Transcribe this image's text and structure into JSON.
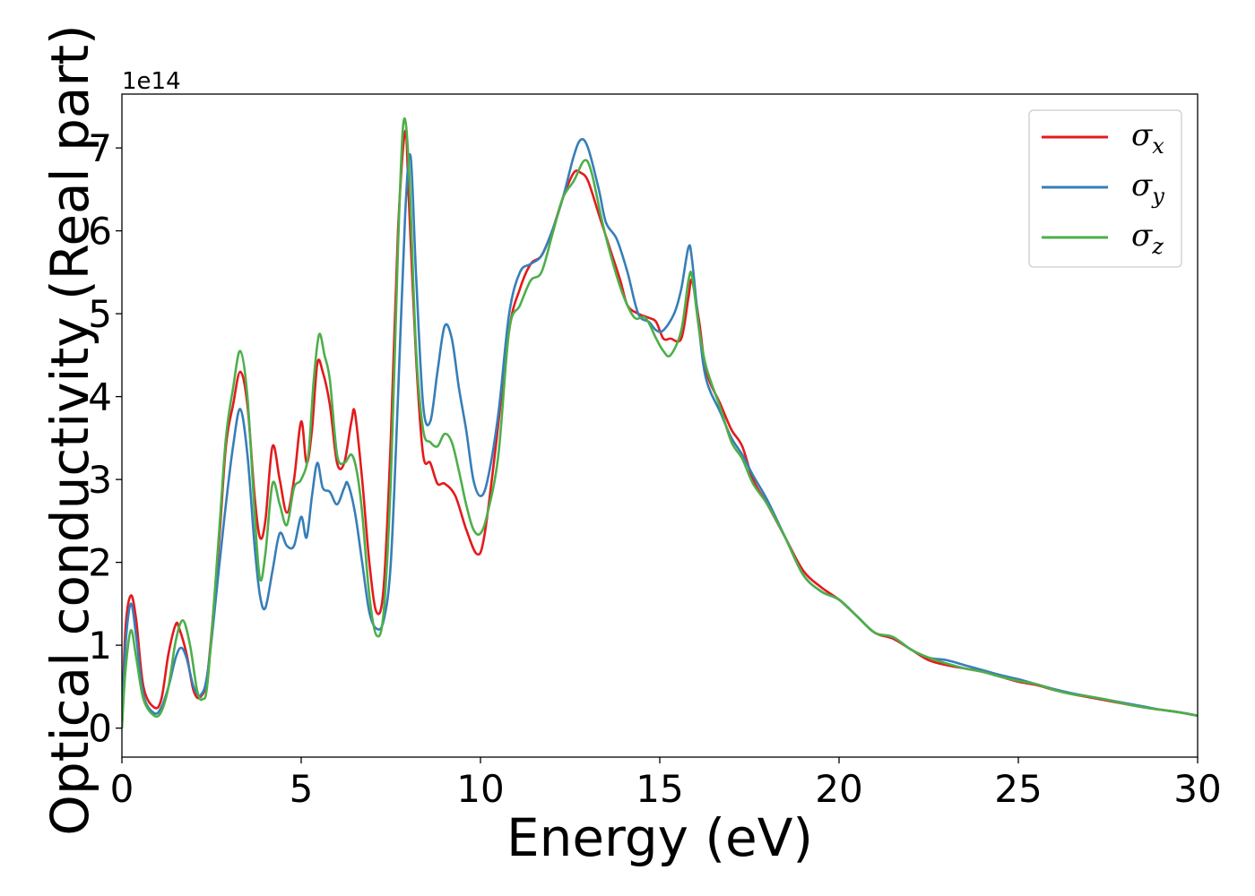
{
  "chart_data": {
    "type": "line",
    "xlabel": "Energy (eV)",
    "ylabel": "Optical conductivity (Real part)",
    "y_offset_text": "1e14",
    "xlim": [
      0,
      30
    ],
    "ylim": [
      -0.35,
      7.65
    ],
    "x_ticks": [
      0,
      5,
      10,
      15,
      20,
      25,
      30
    ],
    "y_ticks": [
      0,
      1,
      2,
      3,
      4,
      5,
      6,
      7
    ],
    "grid": false,
    "legend_position": "top-right",
    "series": [
      {
        "name": "σx",
        "symbol": "σ",
        "subscript": "x",
        "color": "#e41a1c",
        "points": [
          [
            0,
            0
          ],
          [
            0.1,
            1.2
          ],
          [
            0.25,
            1.6
          ],
          [
            0.4,
            1.3
          ],
          [
            0.6,
            0.5
          ],
          [
            0.9,
            0.25
          ],
          [
            1.1,
            0.35
          ],
          [
            1.3,
            0.9
          ],
          [
            1.5,
            1.25
          ],
          [
            1.6,
            1.2
          ],
          [
            1.8,
            0.9
          ],
          [
            2.0,
            0.45
          ],
          [
            2.2,
            0.38
          ],
          [
            2.4,
            0.7
          ],
          [
            2.7,
            2.2
          ],
          [
            2.9,
            3.4
          ],
          [
            3.1,
            3.9
          ],
          [
            3.3,
            4.3
          ],
          [
            3.5,
            3.9
          ],
          [
            3.7,
            2.8
          ],
          [
            3.85,
            2.3
          ],
          [
            4.0,
            2.5
          ],
          [
            4.2,
            3.4
          ],
          [
            4.4,
            3.0
          ],
          [
            4.6,
            2.6
          ],
          [
            4.8,
            3.0
          ],
          [
            5.0,
            3.7
          ],
          [
            5.15,
            3.2
          ],
          [
            5.3,
            3.6
          ],
          [
            5.45,
            4.4
          ],
          [
            5.6,
            4.3
          ],
          [
            5.8,
            3.9
          ],
          [
            6.0,
            3.2
          ],
          [
            6.2,
            3.2
          ],
          [
            6.4,
            3.7
          ],
          [
            6.5,
            3.8
          ],
          [
            6.7,
            3.0
          ],
          [
            6.9,
            2.0
          ],
          [
            7.1,
            1.4
          ],
          [
            7.3,
            1.7
          ],
          [
            7.5,
            3.5
          ],
          [
            7.7,
            6.0
          ],
          [
            7.9,
            7.2
          ],
          [
            8.0,
            6.4
          ],
          [
            8.2,
            4.5
          ],
          [
            8.4,
            3.3
          ],
          [
            8.6,
            3.2
          ],
          [
            8.8,
            2.95
          ],
          [
            9.0,
            2.95
          ],
          [
            9.3,
            2.8
          ],
          [
            9.6,
            2.4
          ],
          [
            9.9,
            2.1
          ],
          [
            10.1,
            2.3
          ],
          [
            10.4,
            3.3
          ],
          [
            10.8,
            4.8
          ],
          [
            11.1,
            5.3
          ],
          [
            11.4,
            5.6
          ],
          [
            11.7,
            5.7
          ],
          [
            12.0,
            6.0
          ],
          [
            12.3,
            6.4
          ],
          [
            12.6,
            6.7
          ],
          [
            12.8,
            6.7
          ],
          [
            13.0,
            6.6
          ],
          [
            13.3,
            6.2
          ],
          [
            13.6,
            5.8
          ],
          [
            13.9,
            5.4
          ],
          [
            14.1,
            5.1
          ],
          [
            14.4,
            5.0
          ],
          [
            14.7,
            4.95
          ],
          [
            14.9,
            4.9
          ],
          [
            15.1,
            4.7
          ],
          [
            15.3,
            4.7
          ],
          [
            15.6,
            4.7
          ],
          [
            15.8,
            5.2
          ],
          [
            15.9,
            5.4
          ],
          [
            16.1,
            4.9
          ],
          [
            16.3,
            4.3
          ],
          [
            16.7,
            3.9
          ],
          [
            17.0,
            3.6
          ],
          [
            17.3,
            3.4
          ],
          [
            17.6,
            3.0
          ],
          [
            18.0,
            2.7
          ],
          [
            18.5,
            2.3
          ],
          [
            19.0,
            1.9
          ],
          [
            19.5,
            1.7
          ],
          [
            20.0,
            1.55
          ],
          [
            20.5,
            1.35
          ],
          [
            21.0,
            1.15
          ],
          [
            21.5,
            1.08
          ],
          [
            22.0,
            0.95
          ],
          [
            22.5,
            0.82
          ],
          [
            23.0,
            0.76
          ],
          [
            23.5,
            0.72
          ],
          [
            24.0,
            0.68
          ],
          [
            24.5,
            0.62
          ],
          [
            25.0,
            0.56
          ],
          [
            25.5,
            0.52
          ],
          [
            26.0,
            0.46
          ],
          [
            26.5,
            0.41
          ],
          [
            27.0,
            0.37
          ],
          [
            27.5,
            0.33
          ],
          [
            28.0,
            0.29
          ],
          [
            28.5,
            0.25
          ],
          [
            29.0,
            0.22
          ],
          [
            29.5,
            0.19
          ],
          [
            30.0,
            0.15
          ]
        ]
      },
      {
        "name": "σy",
        "symbol": "σ",
        "subscript": "y",
        "color": "#377eb8",
        "points": [
          [
            0,
            0
          ],
          [
            0.1,
            1.0
          ],
          [
            0.25,
            1.5
          ],
          [
            0.4,
            1.1
          ],
          [
            0.6,
            0.4
          ],
          [
            0.9,
            0.18
          ],
          [
            1.1,
            0.25
          ],
          [
            1.3,
            0.5
          ],
          [
            1.5,
            0.85
          ],
          [
            1.65,
            0.97
          ],
          [
            1.8,
            0.85
          ],
          [
            2.0,
            0.5
          ],
          [
            2.2,
            0.4
          ],
          [
            2.4,
            0.7
          ],
          [
            2.7,
            1.9
          ],
          [
            2.9,
            2.7
          ],
          [
            3.1,
            3.4
          ],
          [
            3.3,
            3.85
          ],
          [
            3.5,
            3.3
          ],
          [
            3.7,
            2.2
          ],
          [
            3.85,
            1.6
          ],
          [
            4.0,
            1.45
          ],
          [
            4.2,
            1.9
          ],
          [
            4.4,
            2.35
          ],
          [
            4.6,
            2.2
          ],
          [
            4.8,
            2.2
          ],
          [
            5.0,
            2.55
          ],
          [
            5.15,
            2.3
          ],
          [
            5.3,
            2.8
          ],
          [
            5.45,
            3.2
          ],
          [
            5.6,
            2.9
          ],
          [
            5.8,
            2.85
          ],
          [
            6.0,
            2.7
          ],
          [
            6.2,
            2.9
          ],
          [
            6.3,
            2.95
          ],
          [
            6.5,
            2.6
          ],
          [
            6.7,
            2.0
          ],
          [
            6.9,
            1.4
          ],
          [
            7.1,
            1.2
          ],
          [
            7.3,
            1.3
          ],
          [
            7.5,
            2.0
          ],
          [
            7.7,
            4.0
          ],
          [
            7.9,
            6.2
          ],
          [
            8.05,
            6.9
          ],
          [
            8.2,
            5.5
          ],
          [
            8.4,
            3.9
          ],
          [
            8.6,
            3.7
          ],
          [
            8.8,
            4.3
          ],
          [
            9.0,
            4.85
          ],
          [
            9.2,
            4.7
          ],
          [
            9.4,
            4.1
          ],
          [
            9.6,
            3.6
          ],
          [
            9.8,
            3.0
          ],
          [
            10.0,
            2.8
          ],
          [
            10.2,
            3.0
          ],
          [
            10.5,
            3.8
          ],
          [
            10.8,
            5.0
          ],
          [
            11.1,
            5.5
          ],
          [
            11.4,
            5.6
          ],
          [
            11.7,
            5.7
          ],
          [
            12.0,
            6.0
          ],
          [
            12.3,
            6.4
          ],
          [
            12.6,
            6.9
          ],
          [
            12.8,
            7.1
          ],
          [
            13.0,
            7.0
          ],
          [
            13.3,
            6.5
          ],
          [
            13.5,
            6.1
          ],
          [
            13.8,
            5.9
          ],
          [
            14.1,
            5.5
          ],
          [
            14.4,
            5.0
          ],
          [
            14.7,
            4.9
          ],
          [
            14.9,
            4.8
          ],
          [
            15.1,
            4.8
          ],
          [
            15.4,
            5.0
          ],
          [
            15.6,
            5.3
          ],
          [
            15.8,
            5.8
          ],
          [
            15.9,
            5.65
          ],
          [
            16.1,
            4.8
          ],
          [
            16.3,
            4.2
          ],
          [
            16.7,
            3.8
          ],
          [
            17.0,
            3.5
          ],
          [
            17.3,
            3.3
          ],
          [
            17.6,
            3.05
          ],
          [
            18.0,
            2.75
          ],
          [
            18.5,
            2.3
          ],
          [
            19.0,
            1.85
          ],
          [
            19.5,
            1.65
          ],
          [
            20.0,
            1.55
          ],
          [
            20.5,
            1.35
          ],
          [
            21.0,
            1.15
          ],
          [
            21.5,
            1.1
          ],
          [
            22.0,
            0.95
          ],
          [
            22.5,
            0.85
          ],
          [
            23.0,
            0.82
          ],
          [
            23.5,
            0.76
          ],
          [
            24.0,
            0.7
          ],
          [
            24.5,
            0.64
          ],
          [
            25.0,
            0.59
          ],
          [
            25.5,
            0.53
          ],
          [
            26.0,
            0.47
          ],
          [
            26.5,
            0.42
          ],
          [
            27.0,
            0.38
          ],
          [
            27.5,
            0.34
          ],
          [
            28.0,
            0.3
          ],
          [
            28.5,
            0.26
          ],
          [
            29.0,
            0.22
          ],
          [
            29.5,
            0.19
          ],
          [
            30.0,
            0.15
          ]
        ]
      },
      {
        "name": "σz",
        "symbol": "σ",
        "subscript": "z",
        "color": "#4daf4a",
        "points": [
          [
            0,
            0
          ],
          [
            0.1,
            0.7
          ],
          [
            0.25,
            1.18
          ],
          [
            0.4,
            0.85
          ],
          [
            0.6,
            0.35
          ],
          [
            0.9,
            0.15
          ],
          [
            1.1,
            0.2
          ],
          [
            1.3,
            0.5
          ],
          [
            1.5,
            1.05
          ],
          [
            1.7,
            1.3
          ],
          [
            1.9,
            1.0
          ],
          [
            2.1,
            0.45
          ],
          [
            2.25,
            0.35
          ],
          [
            2.4,
            0.6
          ],
          [
            2.7,
            2.3
          ],
          [
            2.9,
            3.5
          ],
          [
            3.1,
            4.1
          ],
          [
            3.3,
            4.55
          ],
          [
            3.5,
            4.0
          ],
          [
            3.7,
            2.6
          ],
          [
            3.85,
            1.8
          ],
          [
            4.0,
            2.1
          ],
          [
            4.2,
            2.95
          ],
          [
            4.4,
            2.7
          ],
          [
            4.6,
            2.45
          ],
          [
            4.8,
            2.9
          ],
          [
            5.0,
            3.0
          ],
          [
            5.2,
            3.3
          ],
          [
            5.35,
            4.2
          ],
          [
            5.5,
            4.75
          ],
          [
            5.65,
            4.5
          ],
          [
            5.8,
            4.2
          ],
          [
            6.0,
            3.3
          ],
          [
            6.2,
            3.2
          ],
          [
            6.4,
            3.3
          ],
          [
            6.55,
            3.1
          ],
          [
            6.7,
            2.6
          ],
          [
            6.9,
            1.6
          ],
          [
            7.1,
            1.12
          ],
          [
            7.3,
            1.4
          ],
          [
            7.5,
            3.0
          ],
          [
            7.7,
            5.8
          ],
          [
            7.85,
            7.3
          ],
          [
            8.0,
            6.8
          ],
          [
            8.2,
            4.6
          ],
          [
            8.4,
            3.6
          ],
          [
            8.6,
            3.45
          ],
          [
            8.8,
            3.4
          ],
          [
            9.0,
            3.55
          ],
          [
            9.2,
            3.45
          ],
          [
            9.4,
            3.1
          ],
          [
            9.6,
            2.7
          ],
          [
            9.8,
            2.4
          ],
          [
            10.0,
            2.35
          ],
          [
            10.2,
            2.6
          ],
          [
            10.5,
            3.3
          ],
          [
            10.8,
            4.8
          ],
          [
            11.1,
            5.1
          ],
          [
            11.4,
            5.4
          ],
          [
            11.7,
            5.5
          ],
          [
            12.0,
            5.95
          ],
          [
            12.3,
            6.4
          ],
          [
            12.6,
            6.6
          ],
          [
            12.9,
            6.85
          ],
          [
            13.1,
            6.7
          ],
          [
            13.4,
            6.1
          ],
          [
            13.7,
            5.6
          ],
          [
            14.0,
            5.2
          ],
          [
            14.3,
            4.95
          ],
          [
            14.6,
            4.95
          ],
          [
            14.9,
            4.7
          ],
          [
            15.1,
            4.55
          ],
          [
            15.3,
            4.5
          ],
          [
            15.6,
            4.8
          ],
          [
            15.8,
            5.4
          ],
          [
            15.9,
            5.45
          ],
          [
            16.1,
            4.8
          ],
          [
            16.3,
            4.35
          ],
          [
            16.7,
            3.85
          ],
          [
            17.0,
            3.45
          ],
          [
            17.3,
            3.25
          ],
          [
            17.6,
            2.95
          ],
          [
            18.0,
            2.7
          ],
          [
            18.5,
            2.3
          ],
          [
            19.0,
            1.85
          ],
          [
            19.5,
            1.65
          ],
          [
            20.0,
            1.55
          ],
          [
            20.5,
            1.35
          ],
          [
            21.0,
            1.15
          ],
          [
            21.5,
            1.1
          ],
          [
            22.0,
            0.95
          ],
          [
            22.5,
            0.85
          ],
          [
            23.0,
            0.78
          ],
          [
            23.5,
            0.72
          ],
          [
            24.0,
            0.68
          ],
          [
            24.5,
            0.62
          ],
          [
            25.0,
            0.57
          ],
          [
            25.5,
            0.53
          ],
          [
            26.0,
            0.46
          ],
          [
            26.5,
            0.41
          ],
          [
            27.0,
            0.38
          ],
          [
            27.5,
            0.34
          ],
          [
            28.0,
            0.29
          ],
          [
            28.5,
            0.25
          ],
          [
            29.0,
            0.22
          ],
          [
            29.5,
            0.19
          ],
          [
            30.0,
            0.15
          ]
        ]
      }
    ]
  }
}
